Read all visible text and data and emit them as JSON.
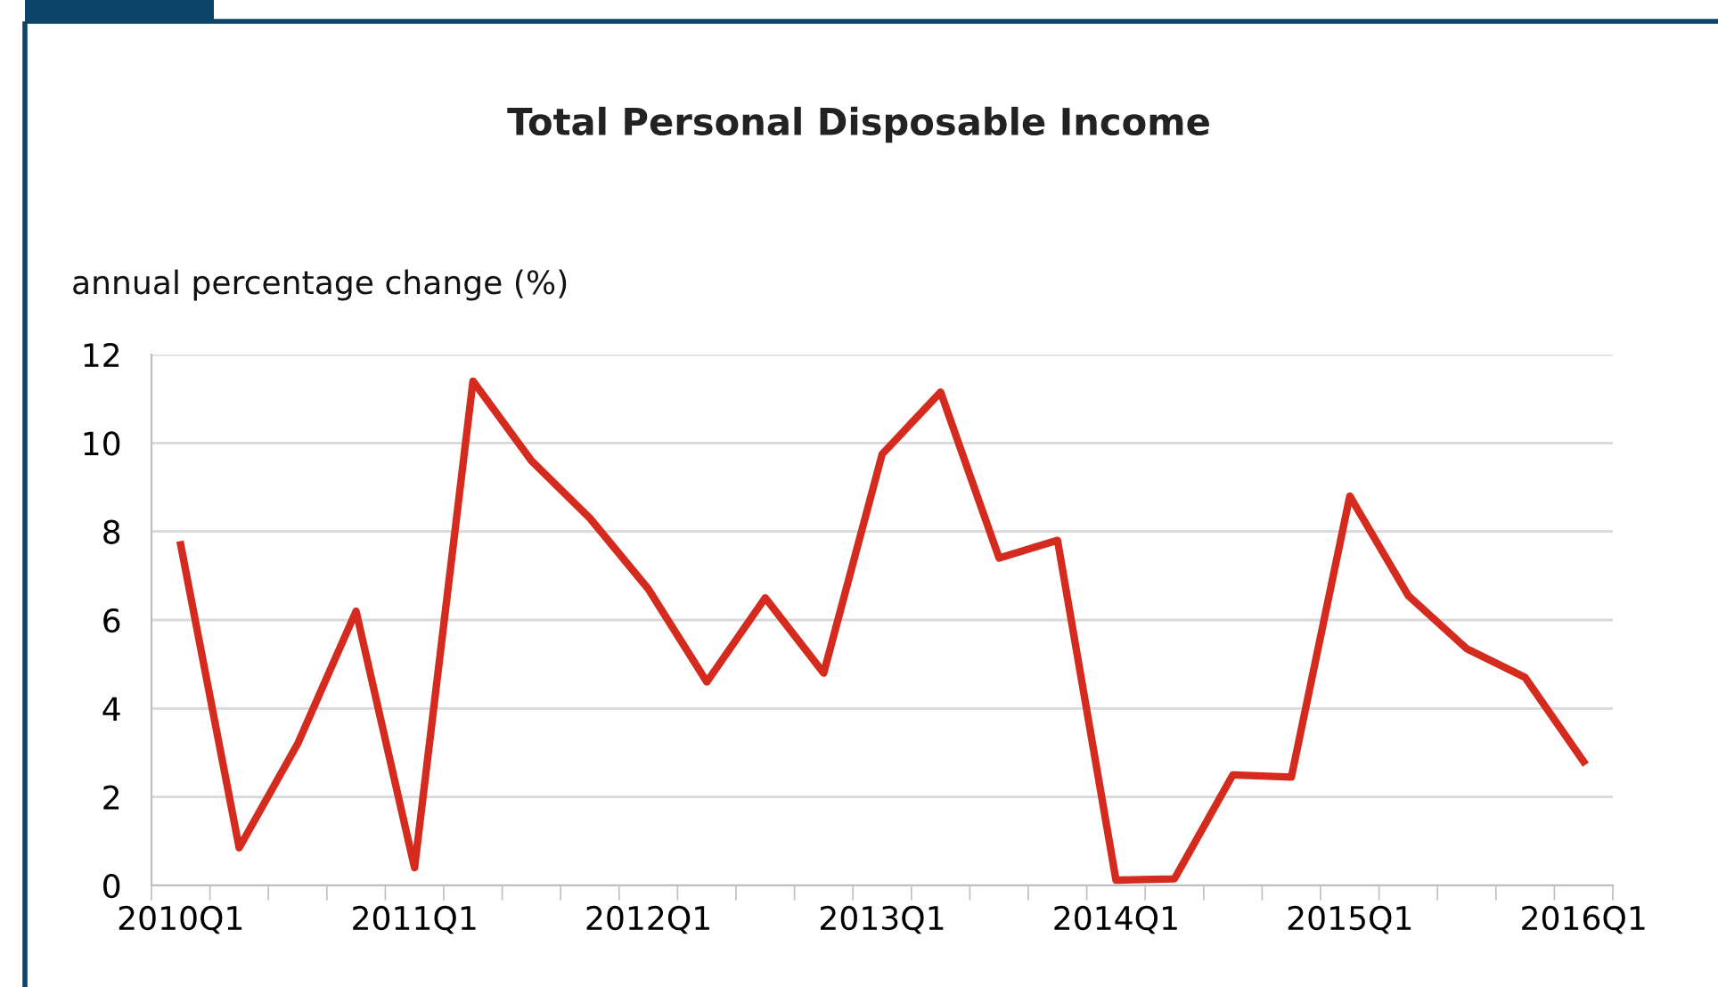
{
  "chart_data": {
    "type": "line",
    "title": "Total Personal Disposable Income",
    "ylabel": "annual percentage change (%)",
    "categories": [
      "2010Q1",
      null,
      null,
      null,
      "2011Q1",
      null,
      null,
      null,
      "2012Q1",
      null,
      null,
      null,
      "2013Q1",
      null,
      null,
      null,
      "2014Q1",
      null,
      null,
      null,
      "2015Q1",
      null,
      null,
      null,
      "2016Q1"
    ],
    "series": [
      {
        "color": "#d52b1e",
        "values": [
          7.7,
          0.85,
          3.2,
          6.2,
          0.4,
          11.4,
          9.6,
          8.3,
          6.7,
          4.6,
          6.5,
          4.8,
          9.75,
          11.15,
          7.4,
          7.8,
          0.12,
          0.15,
          2.5,
          2.45,
          8.8,
          6.55,
          5.35,
          4.7,
          2.8
        ]
      }
    ],
    "ylim": [
      0,
      12
    ],
    "yticks": [
      0,
      2,
      4,
      6,
      8,
      10,
      12
    ],
    "grid": "y",
    "marker": "none",
    "line_style": "solid"
  }
}
